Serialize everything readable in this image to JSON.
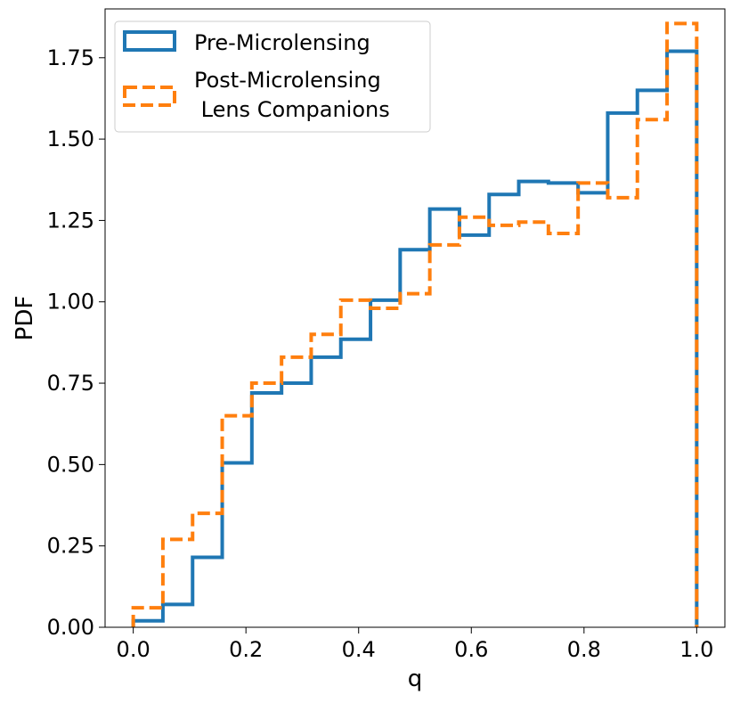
{
  "chart_data": {
    "type": "histogram-step",
    "title": "",
    "xlabel": "q",
    "ylabel": "PDF",
    "xlim": [
      -0.05,
      1.05
    ],
    "ylim": [
      0,
      1.9
    ],
    "grid": false,
    "legend_position": "top-left",
    "bin_edges": [
      0.0,
      0.0526,
      0.1053,
      0.1579,
      0.2105,
      0.2632,
      0.3158,
      0.3684,
      0.4211,
      0.4737,
      0.5263,
      0.5789,
      0.6316,
      0.6842,
      0.7368,
      0.7895,
      0.8421,
      0.8947,
      0.9474,
      1.0
    ],
    "xticks": [
      0.0,
      0.2,
      0.4,
      0.6,
      0.8,
      1.0
    ],
    "xtick_labels": [
      "0.0",
      "0.2",
      "0.4",
      "0.6",
      "0.8",
      "1.0"
    ],
    "yticks": [
      0.0,
      0.25,
      0.5,
      0.75,
      1.0,
      1.25,
      1.5,
      1.75
    ],
    "ytick_labels": [
      "0.00",
      "0.25",
      "0.50",
      "0.75",
      "1.00",
      "1.25",
      "1.50",
      "1.75"
    ],
    "series": [
      {
        "name": "Pre-Microlensing",
        "color": "#1f77b4",
        "linestyle": "solid",
        "values": [
          0.02,
          0.07,
          0.215,
          0.505,
          0.72,
          0.75,
          0.83,
          0.885,
          1.005,
          1.16,
          1.285,
          1.205,
          1.33,
          1.37,
          1.365,
          1.335,
          1.58,
          1.65,
          1.77
        ]
      },
      {
        "name": "Post-Microlensing\n Lens Companions",
        "color": "#ff7f0e",
        "linestyle": "dashed",
        "values": [
          0.06,
          0.27,
          0.35,
          0.65,
          0.75,
          0.83,
          0.9,
          1.005,
          0.98,
          1.025,
          1.175,
          1.26,
          1.235,
          1.245,
          1.21,
          1.365,
          1.32,
          1.56,
          1.855
        ]
      }
    ]
  },
  "legend": {
    "entry1": "Pre-Microlensing",
    "entry2_line1": "Post-Microlensing",
    "entry2_line2": " Lens Companions"
  }
}
